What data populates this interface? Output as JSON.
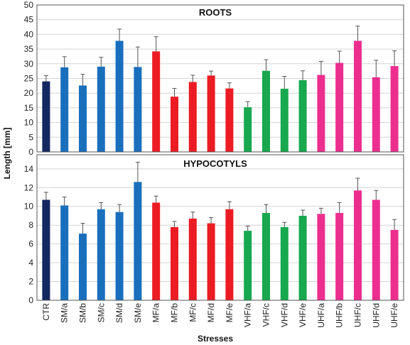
{
  "chart_data": {
    "type": "bar",
    "xlabel": "Stresses",
    "ylabel": "Length [mm]",
    "categories": [
      "CTR",
      "SM/a",
      "SM/b",
      "SM/c",
      "SM/d",
      "SM/e",
      "MF/a",
      "MF/b",
      "MF/c",
      "MF/d",
      "MF/e",
      "VHF/a",
      "VHF/c",
      "VHF/d",
      "VHF/e",
      "UHF/a",
      "UHF/b",
      "UHF/c",
      "UHF/d",
      "UHF/e"
    ],
    "bar_colors": [
      "#13285e",
      "#1a6fbd",
      "#1a6fbd",
      "#1a6fbd",
      "#1a6fbd",
      "#1a6fbd",
      "#ec1c24",
      "#ec1c24",
      "#ec1c24",
      "#ec1c24",
      "#ec1c24",
      "#18a84e",
      "#18a84e",
      "#18a84e",
      "#18a84e",
      "#ec2f8f",
      "#ec2f8f",
      "#ec2f8f",
      "#ec2f8f",
      "#ec2f8f"
    ],
    "grid": true,
    "legend": "none",
    "panels": [
      {
        "title": "ROOTS",
        "ylim": [
          0,
          50
        ],
        "yticks": [
          0,
          5,
          10,
          15,
          20,
          25,
          30,
          35,
          40,
          45,
          50
        ],
        "values": [
          24,
          28.8,
          22.6,
          29,
          37.8,
          28.9,
          34.2,
          18.8,
          23.8,
          26,
          21.6,
          15.2,
          27.6,
          21.5,
          24.4,
          26.2,
          30.3,
          37.8,
          25.4,
          29.2
        ],
        "errors": [
          2,
          3.6,
          3.8,
          3.2,
          4,
          6.8,
          5,
          2.8,
          2.3,
          1.5,
          1.9,
          1.9,
          3.8,
          4.2,
          3.2,
          4.6,
          4,
          5,
          5.8,
          5.2
        ],
        "values_tail_note": ""
      },
      {
        "title": "HYPOCOTYLS",
        "ylim": [
          0,
          15.5
        ],
        "yticks": [
          0,
          2,
          4,
          6,
          8,
          10,
          12,
          14
        ],
        "values": [
          10.7,
          10.1,
          7.1,
          9.7,
          9.4,
          12.6,
          10.4,
          7.8,
          8.7,
          8.2,
          9.7,
          7.4,
          9.3,
          7.8,
          9,
          9.2,
          9.3,
          11.7,
          10.7,
          7.5
        ],
        "errors": [
          0.8,
          0.9,
          1.1,
          0.7,
          0.8,
          2.1,
          0.7,
          0.6,
          0.7,
          0.6,
          0.8,
          0.5,
          0.9,
          0.5,
          0.6,
          0.6,
          1.1,
          1.3,
          1,
          1.1
        ]
      }
    ]
  }
}
